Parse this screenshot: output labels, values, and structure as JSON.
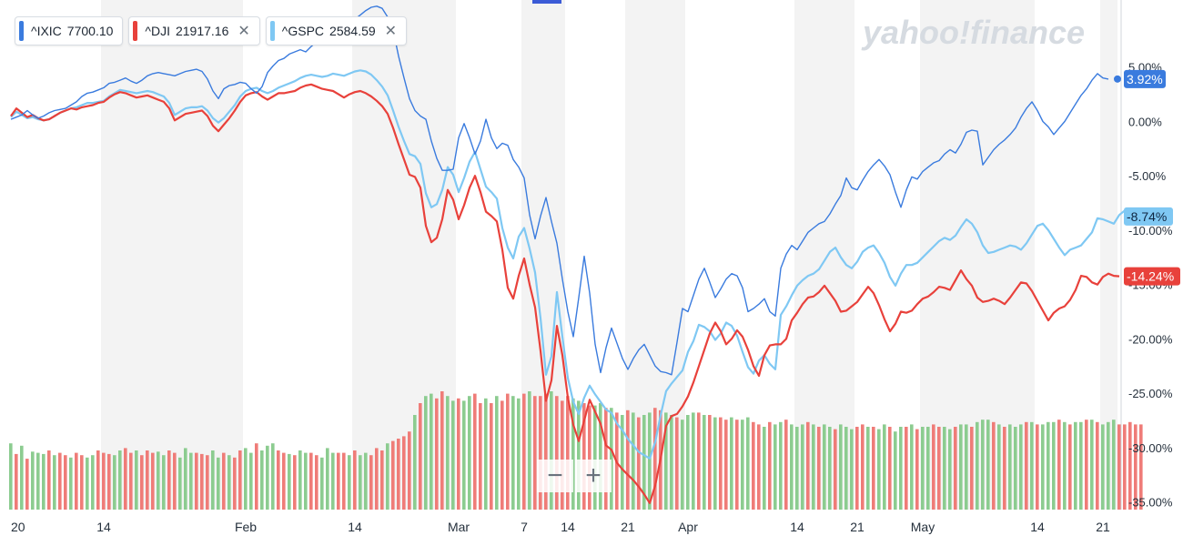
{
  "legend": [
    {
      "symbol": "^IXIC",
      "value": "7700.10",
      "color": "#3a7bde",
      "closable": false
    },
    {
      "symbol": "^DJI",
      "value": "21917.16",
      "color": "#e8413b",
      "closable": true
    },
    {
      "symbol": "^GSPC",
      "value": "2584.59",
      "color": "#7fc8f3",
      "closable": true
    }
  ],
  "watermark": "yahoo!finance",
  "zoom": {
    "minus": "−",
    "plus": "+"
  },
  "colors": {
    "ixic": "#3a7bde",
    "dji": "#e8413b",
    "gspc": "#7fc8f3",
    "vol_up": "#8ccc90",
    "vol_down": "#ef7c78",
    "band": "#f3f3f3"
  },
  "chart_data": {
    "type": "line",
    "x_labels": [
      "20",
      "14",
      "Feb",
      "14",
      "Mar",
      "7",
      "14",
      "21",
      "Apr",
      "14",
      "21",
      "May",
      "14",
      "21"
    ],
    "x_label_index": [
      0,
      17,
      43,
      63,
      82,
      94,
      102,
      113,
      124,
      144,
      155,
      167,
      188,
      200
    ],
    "y_ticks": [
      "5.00%",
      "0.00%",
      "-5.00%",
      "-10.00%",
      "-15.00%",
      "-20.00%",
      "-25.00%",
      "-30.00%",
      "-35.00%"
    ],
    "y_tick_values": [
      5,
      0,
      -5,
      -10,
      -15,
      -20,
      -25,
      -30,
      -35
    ],
    "ylim": [
      -35.7,
      10.5
    ],
    "num_points": 202,
    "series": [
      {
        "name": "^IXIC",
        "last_label": "3.92%",
        "color": "#3a7bde",
        "values": [
          0.2,
          0.4,
          0.6,
          1.0,
          0.6,
          0.3,
          0.5,
          0.8,
          1.0,
          1.1,
          1.2,
          1.5,
          1.8,
          2.3,
          2.6,
          2.7,
          2.9,
          3.1,
          3.5,
          3.6,
          3.8,
          4.0,
          3.7,
          3.5,
          3.8,
          4.2,
          4.4,
          4.5,
          4.4,
          4.3,
          4.2,
          4.4,
          4.6,
          4.7,
          4.8,
          4.6,
          3.9,
          2.8,
          2.1,
          3.0,
          3.3,
          3.4,
          3.6,
          3.5,
          3.0,
          2.6,
          3.2,
          4.5,
          5.1,
          5.6,
          5.8,
          6.2,
          6.4,
          6.6,
          6.4,
          6.9,
          7.3,
          7.5,
          7.8,
          8.2,
          8.6,
          8.8,
          9.2,
          9.4,
          9.8,
          10.2,
          10.5,
          10.6,
          10.4,
          9.6,
          8.4,
          6.0,
          4.0,
          2.1,
          1.0,
          0.5,
          0.2,
          -1.8,
          -3.4,
          -4.5,
          -4.5,
          -4.4,
          -1.5,
          -0.2,
          -1.5,
          -3.0,
          -1.8,
          0.2,
          -1.5,
          -2.5,
          -2.0,
          -2.2,
          -3.5,
          -4.2,
          -5.2,
          -8.6,
          -10.8,
          -8.7,
          -7.0,
          -9.2,
          -11.2,
          -14.5,
          -17.5,
          -19.8,
          -16.2,
          -12.4,
          -15.8,
          -20.5,
          -23.1,
          -20.8,
          -19.0,
          -20.4,
          -21.8,
          -22.8,
          -21.8,
          -21.0,
          -20.5,
          -21.5,
          -22.5,
          -23.0,
          -23.1,
          -23.3,
          -20.3,
          -17.2,
          -17.5,
          -16.0,
          -14.5,
          -13.5,
          -14.8,
          -16.2,
          -15.4,
          -14.5,
          -14.0,
          -14.2,
          -15.3,
          -17.5,
          -17.2,
          -16.8,
          -16.3,
          -17.5,
          -17.9,
          -13.5,
          -12.2,
          -11.4,
          -11.8,
          -11.0,
          -10.2,
          -9.8,
          -9.4,
          -9.2,
          -8.5,
          -7.6,
          -6.8,
          -5.2,
          -6.1,
          -6.3,
          -5.4,
          -4.6,
          -4.0,
          -3.5,
          -4.1,
          -4.9,
          -6.5,
          -7.9,
          -6.3,
          -5.1,
          -5.3,
          -4.6,
          -4.2,
          -3.8,
          -3.6,
          -3.0,
          -2.6,
          -2.9,
          -2.1,
          -1.0,
          -0.8,
          -0.9,
          -4.0,
          -3.3,
          -2.6,
          -2.1,
          -1.7,
          -1.2,
          -0.6,
          0.4,
          1.2,
          1.8,
          1.0,
          0.0,
          -0.5,
          -1.2,
          -0.6,
          0.0,
          0.8,
          1.6,
          2.4,
          3.0,
          3.8,
          4.4,
          4.0,
          3.9
        ]
      },
      {
        "name": "^DJI",
        "last_label": "-14.24%",
        "color": "#e8413b",
        "values": [
          0.5,
          1.2,
          0.8,
          0.4,
          0.6,
          0.3,
          0.1,
          0.2,
          0.5,
          0.8,
          1.0,
          1.2,
          1.1,
          1.3,
          1.4,
          1.5,
          1.7,
          1.8,
          2.2,
          2.5,
          2.7,
          2.6,
          2.4,
          2.2,
          2.3,
          2.4,
          2.2,
          2.0,
          1.8,
          1.2,
          0.1,
          0.4,
          0.7,
          0.8,
          0.9,
          1.0,
          0.5,
          -0.4,
          -0.9,
          -0.3,
          0.3,
          1.0,
          1.8,
          2.4,
          2.6,
          2.7,
          2.3,
          2.0,
          2.3,
          2.6,
          2.6,
          2.7,
          2.8,
          3.1,
          3.3,
          3.4,
          3.2,
          3.0,
          2.9,
          2.8,
          2.5,
          2.2,
          2.5,
          2.7,
          2.8,
          2.6,
          2.3,
          1.9,
          1.4,
          0.7,
          -0.6,
          -2.1,
          -3.5,
          -4.9,
          -5.1,
          -6.1,
          -9.6,
          -11.1,
          -10.7,
          -9.0,
          -6.3,
          -7.2,
          -9.0,
          -7.7,
          -6.1,
          -5.0,
          -6.5,
          -8.3,
          -8.7,
          -9.2,
          -11.8,
          -15.3,
          -16.3,
          -14.2,
          -12.6,
          -15.0,
          -17.1,
          -21.1,
          -25.7,
          -23.8,
          -18.8,
          -21.5,
          -25.4,
          -27.9,
          -29.4,
          -27.5,
          -25.6,
          -26.7,
          -27.8,
          -29.8,
          -30.2,
          -31.4,
          -32.0,
          -32.5,
          -33.0,
          -33.6,
          -34.3,
          -35.1,
          -33.5,
          -31.0,
          -28.0,
          -27.1,
          -26.9,
          -26.2,
          -25.3,
          -24.0,
          -22.5,
          -21.0,
          -19.5,
          -18.5,
          -19.3,
          -20.5,
          -20.0,
          -19.2,
          -19.8,
          -21.0,
          -22.5,
          -23.4,
          -21.5,
          -20.6,
          -20.5,
          -20.5,
          -20.0,
          -18.3,
          -17.6,
          -16.8,
          -16.2,
          -16.1,
          -15.7,
          -15.1,
          -15.8,
          -16.5,
          -17.5,
          -17.4,
          -17.0,
          -16.6,
          -15.9,
          -15.2,
          -15.8,
          -16.9,
          -18.2,
          -19.3,
          -18.6,
          -17.5,
          -17.6,
          -17.4,
          -16.8,
          -16.3,
          -16.1,
          -15.7,
          -15.2,
          -15.3,
          -15.5,
          -14.6,
          -13.7,
          -14.5,
          -15.1,
          -16.2,
          -16.6,
          -16.5,
          -16.3,
          -16.5,
          -16.8,
          -16.2,
          -15.5,
          -14.8,
          -14.9,
          -15.6,
          -16.5,
          -17.4,
          -18.3,
          -17.6,
          -17.2,
          -17.0,
          -16.4,
          -15.5,
          -14.2,
          -14.3,
          -14.8,
          -15.0,
          -14.3,
          -14.0,
          -14.2,
          -14.24
        ]
      },
      {
        "name": "^GSPC",
        "last_label": "-8.74%",
        "color": "#7fc8f3",
        "values": [
          0.4,
          0.9,
          0.6,
          0.3,
          0.4,
          0.2,
          0.1,
          0.2,
          0.5,
          0.8,
          1.0,
          1.2,
          1.3,
          1.5,
          1.7,
          1.7,
          1.8,
          1.9,
          2.3,
          2.6,
          2.9,
          2.8,
          2.7,
          2.6,
          2.7,
          2.8,
          2.7,
          2.5,
          2.3,
          1.7,
          0.6,
          0.9,
          1.2,
          1.3,
          1.3,
          1.4,
          1.0,
          0.3,
          -0.1,
          0.3,
          0.9,
          1.5,
          2.3,
          2.8,
          3.0,
          3.1,
          2.8,
          2.6,
          2.8,
          3.1,
          3.3,
          3.5,
          3.7,
          4.0,
          4.2,
          4.3,
          4.2,
          4.1,
          4.2,
          4.4,
          4.3,
          4.2,
          4.4,
          4.6,
          4.7,
          4.6,
          4.3,
          3.8,
          3.2,
          2.4,
          1.0,
          -0.5,
          -1.8,
          -3.0,
          -3.2,
          -3.9,
          -6.6,
          -7.9,
          -7.6,
          -6.3,
          -4.2,
          -4.9,
          -6.5,
          -5.2,
          -3.7,
          -2.8,
          -4.4,
          -6.0,
          -6.5,
          -7.1,
          -9.8,
          -11.6,
          -12.6,
          -10.6,
          -9.8,
          -11.7,
          -13.9,
          -18.1,
          -23.3,
          -21.6,
          -15.7,
          -19.8,
          -23.6,
          -25.8,
          -26.9,
          -25.4,
          -24.3,
          -25.1,
          -25.8,
          -26.5,
          -26.8,
          -27.8,
          -28.4,
          -29.2,
          -29.8,
          -30.4,
          -30.7,
          -31.0,
          -29.5,
          -27.0,
          -24.8,
          -24.1,
          -23.5,
          -22.9,
          -21.2,
          -20.2,
          -18.7,
          -18.9,
          -19.3,
          -20.1,
          -19.5,
          -18.5,
          -18.8,
          -19.7,
          -21.2,
          -22.6,
          -23.2,
          -22.0,
          -21.5,
          -22.3,
          -22.8,
          -17.8,
          -17.0,
          -16.0,
          -15.1,
          -14.6,
          -14.2,
          -14.0,
          -13.6,
          -12.8,
          -12.0,
          -11.6,
          -12.5,
          -13.2,
          -13.5,
          -12.9,
          -12.0,
          -11.6,
          -11.4,
          -12.1,
          -13.0,
          -14.3,
          -15.1,
          -14.0,
          -13.2,
          -13.2,
          -13.0,
          -12.5,
          -12.0,
          -11.5,
          -11.0,
          -10.7,
          -10.9,
          -10.5,
          -9.7,
          -9.0,
          -9.4,
          -10.2,
          -11.4,
          -12.1,
          -12.0,
          -11.8,
          -11.6,
          -11.4,
          -11.5,
          -11.8,
          -11.2,
          -10.4,
          -9.6,
          -9.4,
          -10.0,
          -10.8,
          -11.6,
          -12.3,
          -11.8,
          -11.6,
          -11.4,
          -10.8,
          -10.2,
          -8.9,
          -9.0,
          -9.2,
          -9.4,
          -8.6,
          -8.2,
          -8.4,
          -8.74
        ]
      }
    ],
    "volume": {
      "values": [
        0.56,
        0.47,
        0.54,
        0.43,
        0.49,
        0.48,
        0.47,
        0.5,
        0.46,
        0.48,
        0.46,
        0.44,
        0.48,
        0.46,
        0.44,
        0.46,
        0.5,
        0.48,
        0.47,
        0.46,
        0.5,
        0.52,
        0.48,
        0.5,
        0.46,
        0.5,
        0.48,
        0.49,
        0.46,
        0.5,
        0.48,
        0.44,
        0.52,
        0.48,
        0.48,
        0.47,
        0.46,
        0.5,
        0.44,
        0.48,
        0.46,
        0.44,
        0.5,
        0.52,
        0.48,
        0.56,
        0.5,
        0.54,
        0.56,
        0.5,
        0.48,
        0.47,
        0.46,
        0.5,
        0.48,
        0.48,
        0.46,
        0.44,
        0.52,
        0.48,
        0.48,
        0.48,
        0.46,
        0.5,
        0.46,
        0.48,
        0.46,
        0.52,
        0.5,
        0.56,
        0.58,
        0.6,
        0.62,
        0.66,
        0.8,
        0.9,
        0.96,
        0.98,
        0.94,
        1.0,
        0.96,
        0.92,
        0.94,
        0.92,
        0.96,
        0.98,
        0.9,
        0.94,
        0.9,
        0.96,
        0.92,
        0.98,
        0.96,
        0.94,
        0.98,
        1.0,
        0.96,
        0.96,
        0.98,
        1.0,
        0.96,
        0.92,
        0.96,
        0.94,
        0.92,
        0.9,
        0.88,
        0.88,
        0.9,
        0.86,
        0.86,
        0.82,
        0.8,
        0.84,
        0.82,
        0.78,
        0.8,
        0.82,
        0.86,
        0.84,
        0.82,
        0.8,
        0.78,
        0.76,
        0.8,
        0.82,
        0.82,
        0.8,
        0.8,
        0.78,
        0.78,
        0.76,
        0.78,
        0.76,
        0.76,
        0.78,
        0.74,
        0.72,
        0.7,
        0.74,
        0.72,
        0.74,
        0.76,
        0.72,
        0.7,
        0.72,
        0.74,
        0.72,
        0.7,
        0.72,
        0.7,
        0.68,
        0.72,
        0.7,
        0.68,
        0.7,
        0.72,
        0.7,
        0.7,
        0.68,
        0.72,
        0.7,
        0.66,
        0.7,
        0.7,
        0.72,
        0.68,
        0.7,
        0.7,
        0.72,
        0.7,
        0.7,
        0.68,
        0.7,
        0.72,
        0.72,
        0.7,
        0.74,
        0.76,
        0.76,
        0.74,
        0.72,
        0.7,
        0.72,
        0.7,
        0.72,
        0.74,
        0.74,
        0.72,
        0.72,
        0.74,
        0.74,
        0.76,
        0.74,
        0.72,
        0.74,
        0.74,
        0.76,
        0.76,
        0.74,
        0.72,
        0.74,
        0.76,
        0.72,
        0.72,
        0.74,
        0.72,
        0.72
      ],
      "up": [
        1,
        0,
        1,
        0,
        1,
        1,
        1,
        0,
        1,
        0,
        0,
        1,
        0,
        0,
        1,
        1,
        0,
        0,
        0,
        1,
        1,
        0,
        0,
        1,
        0,
        0,
        0,
        1,
        1,
        0,
        0,
        1,
        1,
        1,
        0,
        0,
        0,
        1,
        1,
        0,
        1,
        0,
        0,
        1,
        1,
        0,
        1,
        1,
        1,
        0,
        0,
        1,
        0,
        1,
        1,
        0,
        0,
        1,
        1,
        1,
        0,
        0,
        1,
        0,
        1,
        1,
        0,
        0,
        0,
        1,
        0,
        0,
        0,
        0,
        1,
        0,
        1,
        1,
        0,
        0,
        1,
        1,
        0,
        1,
        1,
        0,
        0,
        1,
        0,
        1,
        0,
        0,
        1,
        1,
        0,
        1,
        0,
        0,
        0,
        1,
        0,
        0,
        0,
        1,
        1,
        0,
        0,
        1,
        1,
        0,
        1,
        0,
        1,
        0,
        1,
        0,
        1,
        1,
        0,
        0,
        1,
        1,
        0,
        1,
        1,
        1,
        0,
        1,
        0,
        1,
        0,
        0,
        1,
        0,
        1,
        1,
        0,
        0,
        1,
        0,
        1,
        1,
        0,
        1,
        1,
        1,
        0,
        1,
        0,
        1,
        1,
        0,
        1,
        1,
        1,
        0,
        0,
        1,
        0,
        1,
        1,
        0,
        1,
        1,
        0,
        1,
        0,
        1,
        1,
        0,
        0,
        1,
        1,
        0,
        1,
        1,
        0,
        1,
        1,
        1,
        0,
        1,
        0,
        1,
        1,
        1,
        0,
        1,
        0,
        1,
        1,
        1,
        0,
        1,
        0,
        1,
        1,
        0,
        1,
        0,
        1,
        1,
        1
      ]
    }
  }
}
